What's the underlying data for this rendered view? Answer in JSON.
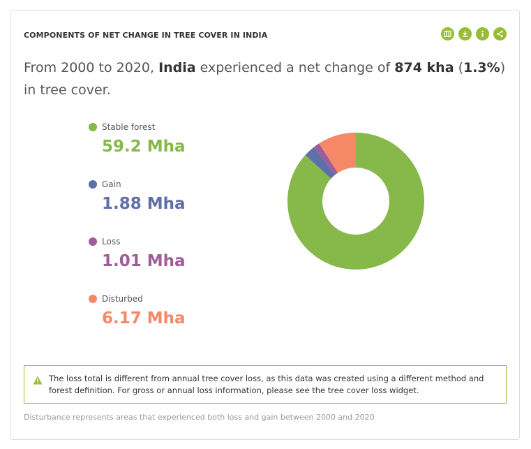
{
  "widget": {
    "title": "COMPONENTS OF NET CHANGE IN TREE COVER IN INDIA",
    "toolbar": [
      {
        "name": "map-icon"
      },
      {
        "name": "download-icon"
      },
      {
        "name": "info-icon"
      },
      {
        "name": "share-icon"
      }
    ],
    "sentence": {
      "part1": "From 2000 to 2020, ",
      "location": "India",
      "part2": " experienced a net change of ",
      "net_change": "874 kha",
      "part3": " (",
      "percent": "1.3%",
      "part4": ") in tree cover."
    },
    "notice": {
      "icon": "warning-icon",
      "text": "The loss total is different from annual tree cover loss, as this data was created using a different method and forest definition. For gross or annual loss information, please see the tree cover loss widget."
    },
    "footnote": "Disturbance represents areas that experienced both loss and gain between 2000 and 2020"
  },
  "chart_data": {
    "type": "pie",
    "title": "",
    "unit": "Mha",
    "categories": [
      "Stable forest",
      "Gain",
      "Loss",
      "Disturbed"
    ],
    "values": [
      59.2,
      1.88,
      1.01,
      6.17
    ],
    "value_labels": [
      "59.2 Mha",
      "1.88 Mha",
      "1.01 Mha",
      "6.17 Mha"
    ],
    "colors": [
      "#86b84a",
      "#5f6fa8",
      "#a05c99",
      "#f58867"
    ],
    "donut": true,
    "legend_position": "left"
  }
}
